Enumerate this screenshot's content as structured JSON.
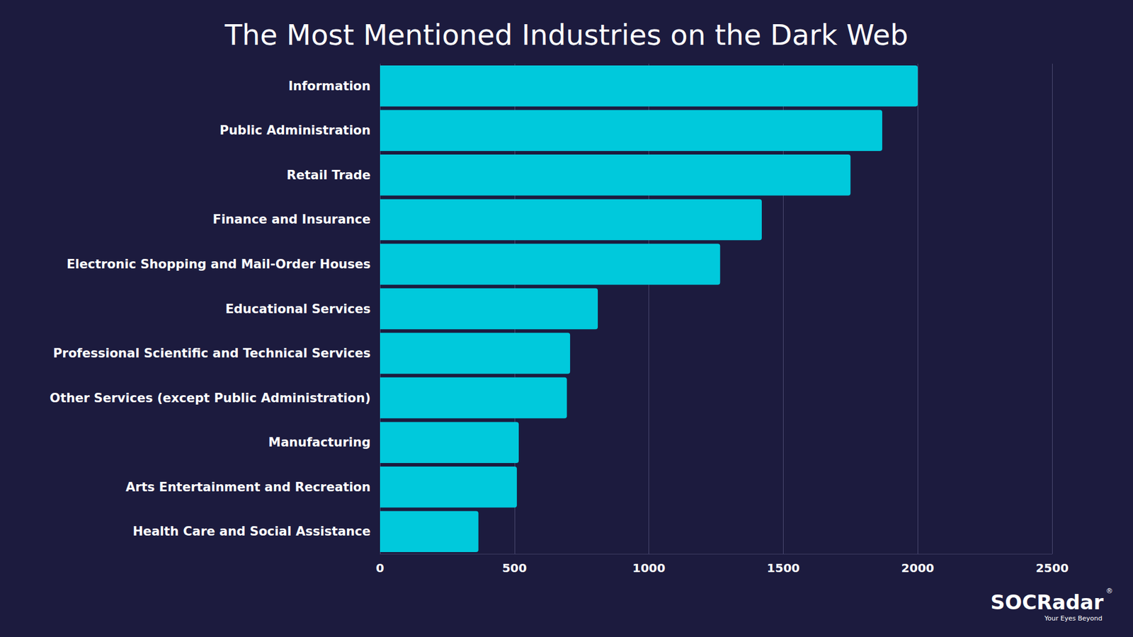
{
  "chart_data": {
    "type": "bar",
    "title": "The Most Mentioned Industries on the Dark Web",
    "orientation": "horizontal",
    "categories": [
      "Information",
      "Public Administration",
      "Retail Trade",
      "Finance and Insurance",
      "Electronic Shopping and Mail-Order Houses",
      "Educational Services",
      "Professional Scientific and Technical Services",
      "Other Services (except Public Administration)",
      "Manufacturing",
      "Arts Entertainment and Recreation",
      "Health Care and Social Assistance"
    ],
    "values": [
      2000,
      1868,
      1750,
      1420,
      1265,
      810,
      707,
      695,
      516,
      509,
      366
    ],
    "color": "#00c9dc",
    "xlim": [
      0,
      2500
    ],
    "xticks": [
      0,
      500,
      1000,
      1500,
      2000,
      2500
    ],
    "grid": true,
    "annotations": [
      "SOCRadar",
      "®",
      "Your Eyes Beyond"
    ]
  }
}
